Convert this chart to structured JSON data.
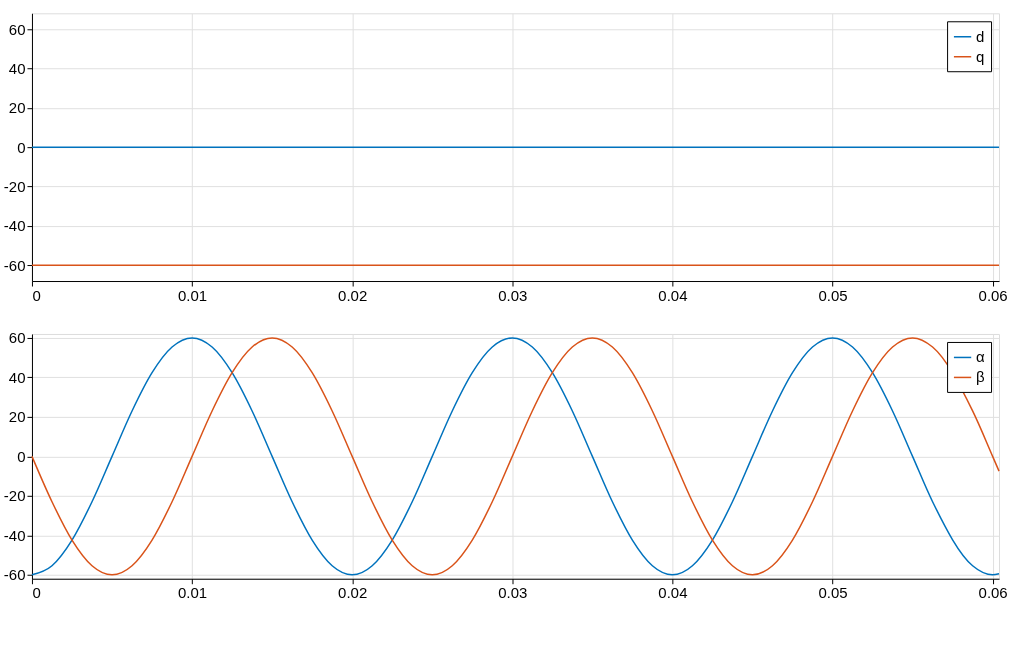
{
  "chart_data": [
    {
      "type": "line",
      "x": [
        0,
        0.0604
      ],
      "xlim": [
        0,
        0.0604
      ],
      "xticks": [
        0,
        0.01,
        0.02,
        0.03,
        0.04,
        0.05,
        0.06
      ],
      "ylim": [
        -68,
        68
      ],
      "yticks": [
        -60,
        -40,
        -20,
        0,
        20,
        40,
        60
      ],
      "grid": true,
      "legend": "top right",
      "series": [
        {
          "name": "d",
          "color": "#0072bd",
          "values": [
            0,
            0
          ]
        },
        {
          "name": "q",
          "color": "#d95319",
          "values": [
            -60,
            -60
          ]
        }
      ]
    },
    {
      "type": "line",
      "x": [
        0,
        0.00125,
        0.0025,
        0.00375,
        0.005,
        0.00625,
        0.0075,
        0.00875,
        0.01,
        0.01125,
        0.0125,
        0.01375,
        0.015,
        0.01625,
        0.0175,
        0.01875,
        0.02,
        0.02125,
        0.0225,
        0.02375,
        0.025,
        0.02625,
        0.0275,
        0.02875,
        0.03,
        0.03125,
        0.0325,
        0.03375,
        0.035,
        0.03625,
        0.0375,
        0.03875,
        0.04,
        0.04125,
        0.0425,
        0.04375,
        0.045,
        0.04625,
        0.0475,
        0.04875,
        0.05,
        0.05125,
        0.0525,
        0.05375,
        0.055,
        0.05625,
        0.05875,
        0.06,
        0.0604
      ],
      "xlim": [
        0,
        0.0604
      ],
      "xticks": [
        0,
        0.01,
        0.02,
        0.03,
        0.04,
        0.05,
        0.06
      ],
      "ylim": [
        -62,
        62
      ],
      "yticks": [
        -60,
        -40,
        -20,
        0,
        20,
        40,
        60
      ],
      "grid": true,
      "legend": "top right",
      "series": [
        {
          "name": "α",
          "color": "#0072bd",
          "values": [
            -60,
            -55.4,
            -42.4,
            -23,
            0,
            23,
            42.4,
            55.4,
            60,
            55.4,
            42.4,
            23,
            0,
            -23,
            -42.4,
            -55.4,
            -60,
            -55.4,
            -42.4,
            -23,
            0,
            23,
            42.4,
            55.4,
            60,
            55.4,
            42.4,
            23,
            0,
            -23,
            -42.4,
            -55.4,
            -60,
            -55.4,
            -42.4,
            -23,
            0,
            23,
            42.4,
            55.4,
            60,
            55.4,
            42.4,
            23,
            0,
            -23,
            -55.4,
            -60,
            -59.5
          ]
        },
        {
          "name": "β",
          "color": "#d95319",
          "values": [
            0,
            -23,
            -42.4,
            -55.4,
            -60,
            -55.4,
            -42.4,
            -23,
            0,
            23,
            42.4,
            55.4,
            60,
            55.4,
            42.4,
            23,
            0,
            -23,
            -42.4,
            -55.4,
            -60,
            -55.4,
            -42.4,
            -23,
            0,
            23,
            42.4,
            55.4,
            60,
            55.4,
            42.4,
            23,
            0,
            -23,
            -42.4,
            -55.4,
            -60,
            -55.4,
            -42.4,
            -23,
            0,
            23,
            42.4,
            55.4,
            60,
            55.4,
            23,
            0,
            -7.5
          ]
        }
      ]
    }
  ]
}
